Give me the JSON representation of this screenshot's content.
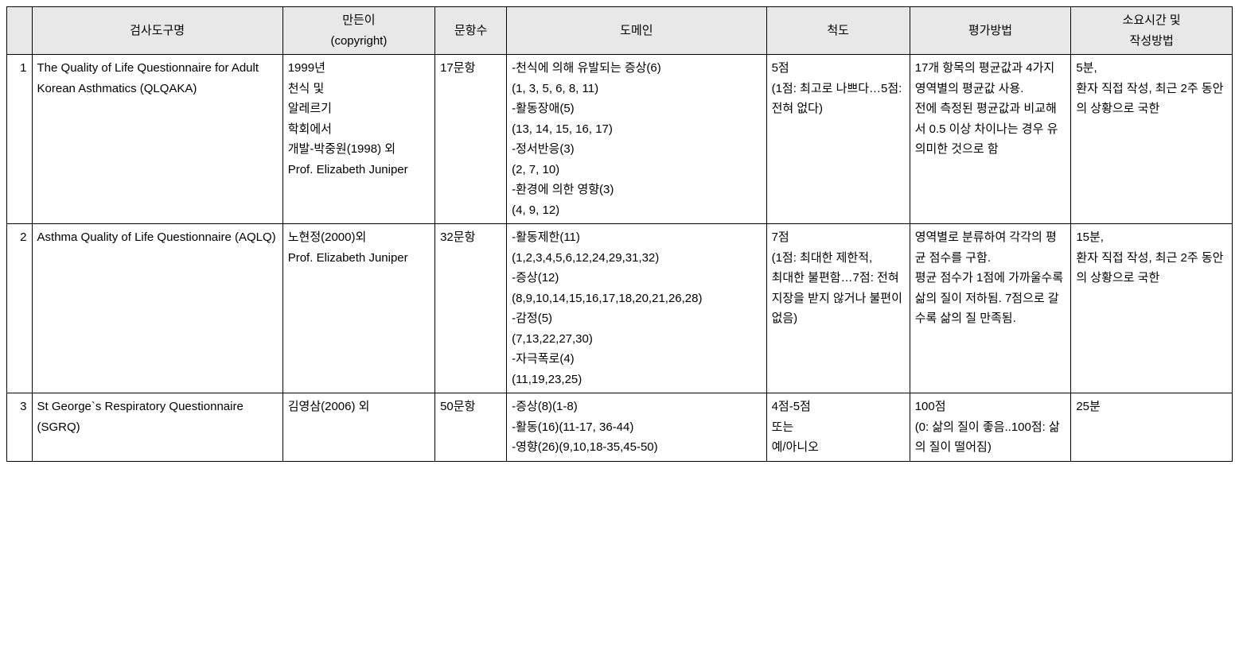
{
  "headers": {
    "num": "",
    "name": "검사도구명",
    "author": "만든이\n(copyright)",
    "items": "문항수",
    "domain": "도메인",
    "scale": "척도",
    "method": "평가방법",
    "time": "소요시간 및\n작성방법"
  },
  "rows": [
    {
      "num": "1",
      "name": "The Quality of Life Questionnaire for Adult Korean Asthmatics (QLQAKA)",
      "author": "1999년\n천식 및\n알레르기\n학회에서\n개발-박중원(1998) 외\nProf. Elizabeth Juniper",
      "items": "17문항",
      "domain": "-천식에 의해 유발되는 증상(6)\n(1, 3, 5, 6, 8, 11)\n-활동장애(5)\n(13, 14, 15, 16, 17)\n-정서반응(3)\n(2, 7, 10)\n-환경에 의한 영향(3)\n(4, 9, 12)",
      "scale": "5점\n(1점: 최고로 나쁘다…5점: 전혀 없다)",
      "method": "17개 항목의 평균값과 4가지 영역별의 평균값 사용.\n전에 측정된 평균값과 비교해서 0.5 이상    차이나는 경우 유의미한 것으로 함",
      "time": "5분,\n환자 직접 작성, 최근 2주 동안의 상황으로 국한"
    },
    {
      "num": "2",
      "name": "Asthma Quality of   Life Questionnaire (AQLQ)",
      "author": "노현정(2000)외\nProf. Elizabeth Juniper",
      "items": "32문항",
      "domain": "-활동제한(11)\n(1,2,3,4,5,6,12,24,29,31,32)\n-증상(12)\n(8,9,10,14,15,16,17,18,20,21,26,28)\n-감정(5)\n(7,13,22,27,30)\n-자극폭로(4)\n(11,19,23,25)",
      "scale": "7점\n(1점: 최대한 제한적,\n최대한 불편함…7점: 전혀 지장을 받지 않거나 불편이 없음)",
      "method": "영역별로 분류하여 각각의 평균 점수를 구함.\n평균 점수가 1점에 가까울수록 삶의 질이 저하됨. 7점으로 갈수록 삶의 질 만족됨.",
      "time": "15분,\n환자 직접 작성, 최근 2주 동안의 상황으로 국한"
    },
    {
      "num": "3",
      "name": "St George`s Respiratory Questionnaire (SGRQ)",
      "author": "김영삼(2006) 외",
      "items": "50문항",
      "domain": "-증상(8)(1-8)\n-활동(16)(11-17, 36-44)\n-영향(26)(9,10,18-35,45-50)",
      "scale": "4점-5점\n또는\n예/아니오",
      "method": "100점\n(0: 삶의 질이 좋음..100점: 삶의 질이 떨어짐)",
      "time": "25분"
    }
  ]
}
